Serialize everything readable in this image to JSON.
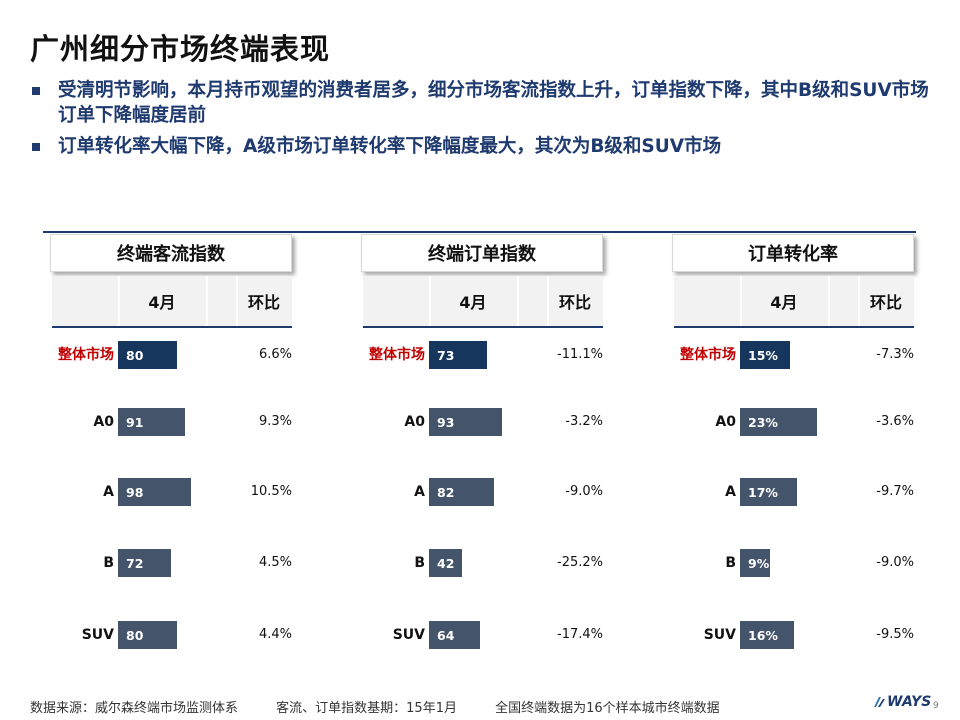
{
  "title": "广州细分市场终端表现",
  "bullets": [
    "受清明节影响，本月持币观望的消费者居多，细分市场客流指数上升，订单指数下降，其中B级和SUV市场订单下降幅度居前",
    "订单转化率大幅下降，A级市场订单转化率下降幅度最大，其次为B级和SUV市场"
  ],
  "colors": {
    "accent": "#1f3a6e",
    "bar_dark": "#17365d",
    "bar": "#44546a",
    "highlight": "#c00000"
  },
  "chart_data": [
    {
      "type": "bar",
      "title": "终端客流指数",
      "col_month": "4月",
      "col_mom": "环比",
      "categories": [
        "整体市场",
        "A0",
        "A",
        "B",
        "SUV"
      ],
      "values": [
        80,
        91,
        98,
        72,
        80
      ],
      "value_labels": [
        "80",
        "91",
        "98",
        "72",
        "80"
      ],
      "mom": [
        "6.6%",
        "9.3%",
        "10.5%",
        "4.5%",
        "4.4%"
      ]
    },
    {
      "type": "bar",
      "title": "终端订单指数",
      "col_month": "4月",
      "col_mom": "环比",
      "categories": [
        "整体市场",
        "A0",
        "A",
        "B",
        "SUV"
      ],
      "values": [
        73,
        93,
        82,
        42,
        64
      ],
      "value_labels": [
        "73",
        "93",
        "82",
        "42",
        "64"
      ],
      "mom": [
        "-11.1%",
        "-3.2%",
        "-9.0%",
        "-25.2%",
        "-17.4%"
      ]
    },
    {
      "type": "bar",
      "title": "订单转化率",
      "col_month": "4月",
      "col_mom": "环比",
      "categories": [
        "整体市场",
        "A0",
        "A",
        "B",
        "SUV"
      ],
      "values": [
        15,
        23,
        17,
        9,
        16
      ],
      "value_labels": [
        "15%",
        "23%",
        "17%",
        "9%",
        "16%"
      ],
      "mom": [
        "-7.3%",
        "-3.6%",
        "-9.7%",
        "-9.0%",
        "-9.5%"
      ]
    }
  ],
  "footer": {
    "source": "数据来源：威尔森终端市场监测体系",
    "base": "客流、订单指数基期：15年1月",
    "scope": "全国终端数据为16个样本城市终端数据"
  },
  "logo": "WAYS",
  "page_number": "9"
}
